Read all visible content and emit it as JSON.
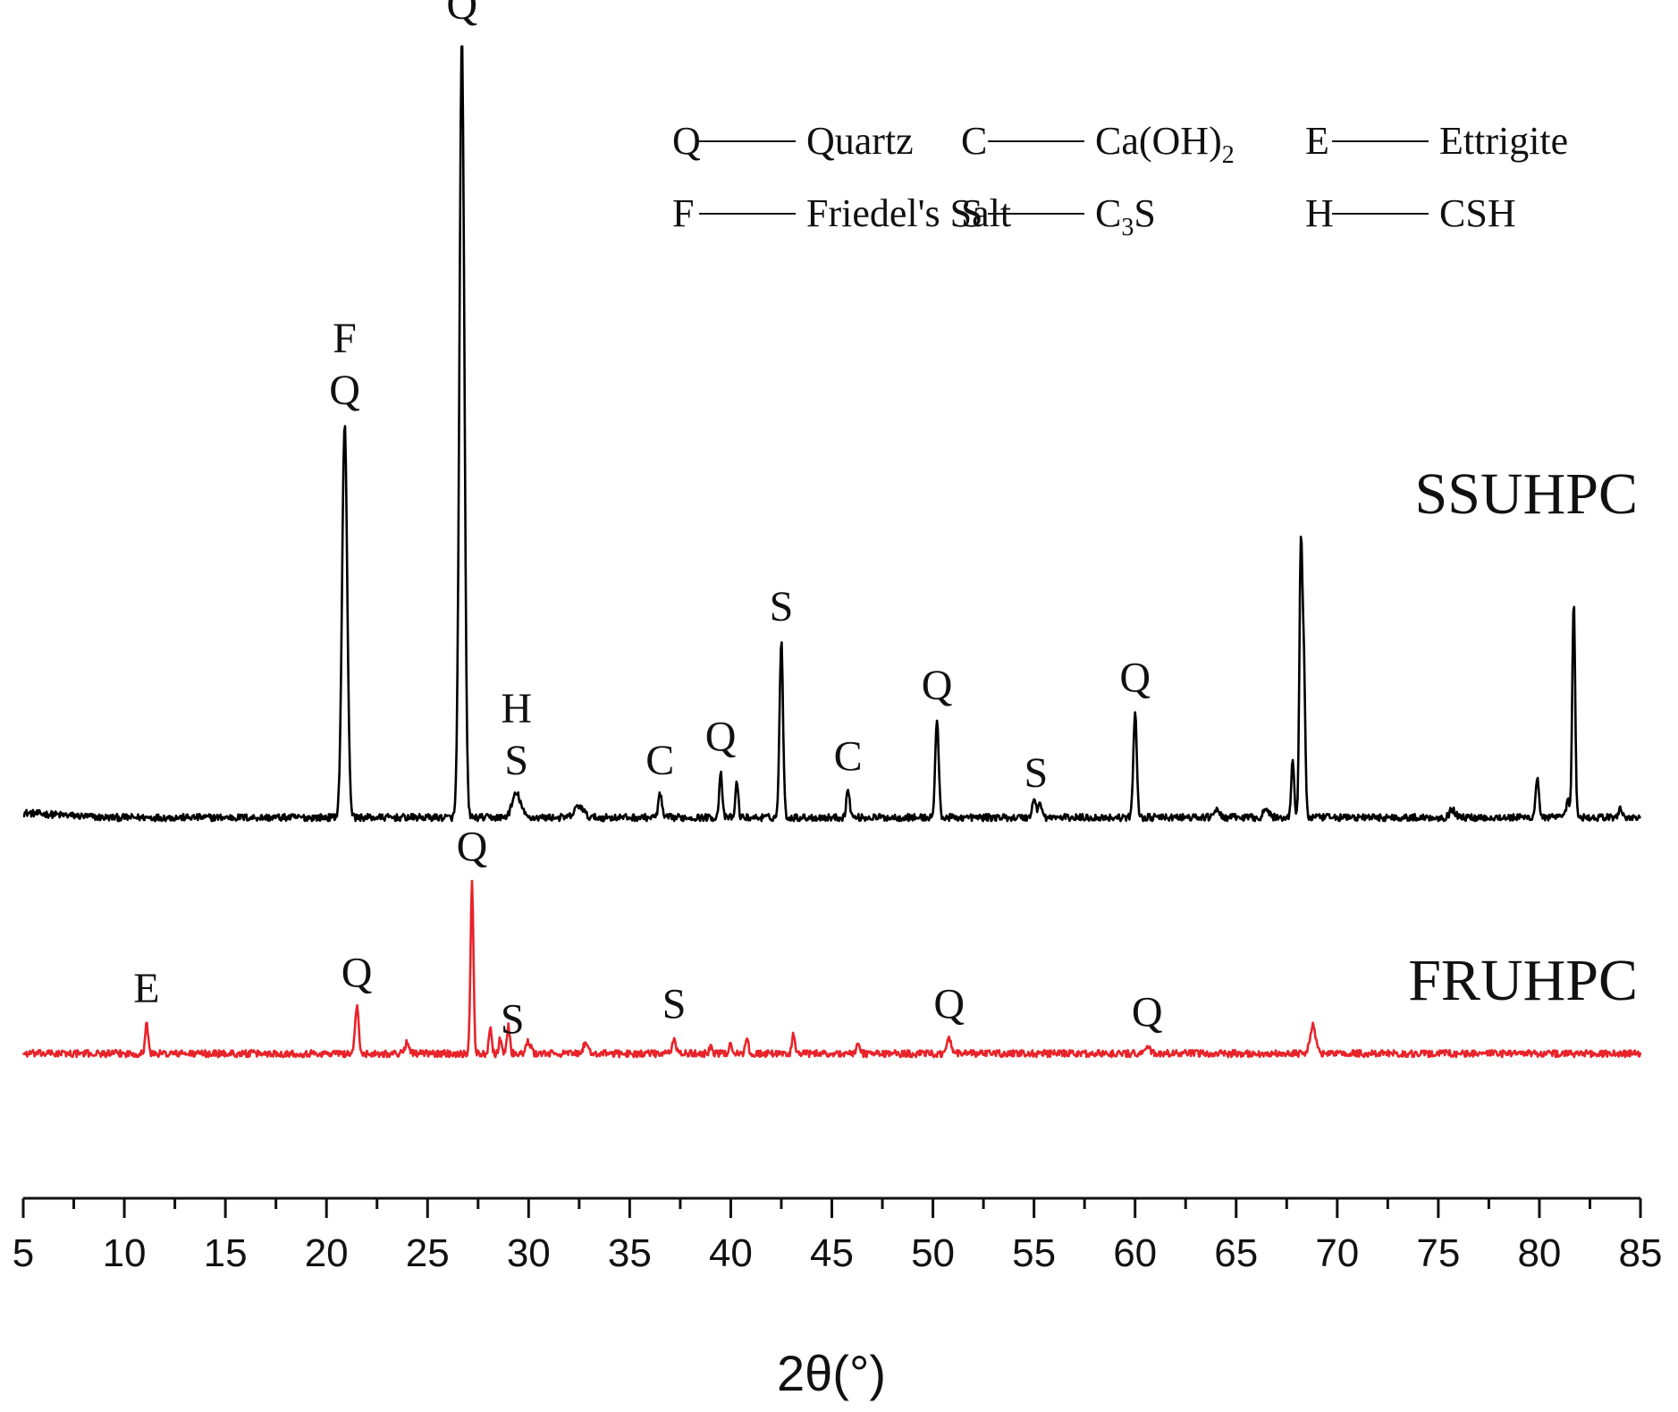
{
  "chart_data": {
    "type": "line",
    "title": "",
    "xlabel": "2θ(°)",
    "ylabel": "",
    "xlim": [
      5,
      85
    ],
    "x_ticks": [
      5,
      10,
      15,
      20,
      25,
      30,
      35,
      40,
      45,
      50,
      55,
      60,
      65,
      70,
      75,
      80,
      85
    ],
    "grid": false,
    "legend_position": "top-right",
    "legend": [
      [
        {
          "symbol": "Q",
          "name": "Quartz"
        },
        {
          "symbol": "C",
          "name": "Ca(OH)",
          "subscript": "2"
        },
        {
          "symbol": "E",
          "name": "Ettrigite"
        }
      ],
      [
        {
          "symbol": "F",
          "name": "Friedel's Salt"
        },
        {
          "symbol": "S",
          "name": "C",
          "subscript": "3",
          "suffix": "S"
        },
        {
          "symbol": "H",
          "name": "CSH"
        }
      ]
    ],
    "series": [
      {
        "name": "SSUHPC",
        "color": "#000000",
        "baseline": 0.07,
        "peaks": [
          {
            "x": 20.9,
            "h": 1.0,
            "w": 0.18
          },
          {
            "x": 26.7,
            "h": 1.98,
            "w": 0.17
          },
          {
            "x": 29.4,
            "h": 0.06,
            "w": 0.3
          },
          {
            "x": 32.5,
            "h": 0.03,
            "w": 0.3
          },
          {
            "x": 36.5,
            "h": 0.06,
            "w": 0.12
          },
          {
            "x": 39.5,
            "h": 0.12,
            "w": 0.1
          },
          {
            "x": 40.3,
            "h": 0.09,
            "w": 0.1
          },
          {
            "x": 42.5,
            "h": 0.45,
            "w": 0.12
          },
          {
            "x": 45.8,
            "h": 0.07,
            "w": 0.12
          },
          {
            "x": 50.2,
            "h": 0.25,
            "w": 0.12
          },
          {
            "x": 55.0,
            "h": 0.05,
            "w": 0.12
          },
          {
            "x": 55.3,
            "h": 0.04,
            "w": 0.12
          },
          {
            "x": 60.0,
            "h": 0.27,
            "w": 0.12
          },
          {
            "x": 64.0,
            "h": 0.02,
            "w": 0.2
          },
          {
            "x": 66.5,
            "h": 0.02,
            "w": 0.2
          },
          {
            "x": 67.8,
            "h": 0.15,
            "w": 0.1
          },
          {
            "x": 68.2,
            "h": 0.68,
            "w": 0.1
          },
          {
            "x": 68.35,
            "h": 0.38,
            "w": 0.1
          },
          {
            "x": 75.7,
            "h": 0.02,
            "w": 0.2
          },
          {
            "x": 79.9,
            "h": 0.1,
            "w": 0.12
          },
          {
            "x": 81.4,
            "h": 0.05,
            "w": 0.1
          },
          {
            "x": 81.7,
            "h": 0.55,
            "w": 0.1
          },
          {
            "x": 84.0,
            "h": 0.02,
            "w": 0.15
          }
        ],
        "annotations": [
          {
            "x": 20.9,
            "lines": [
              "F",
              "Q"
            ]
          },
          {
            "x": 26.7,
            "lines": [
              "Q"
            ]
          },
          {
            "x": 29.4,
            "lines": [
              "H",
              "S"
            ]
          },
          {
            "x": 36.5,
            "lines": [
              "C"
            ]
          },
          {
            "x": 39.5,
            "lines": [
              "Q"
            ]
          },
          {
            "x": 42.5,
            "lines": [
              "S"
            ]
          },
          {
            "x": 45.8,
            "lines": [
              "C"
            ]
          },
          {
            "x": 50.2,
            "lines": [
              "Q"
            ]
          },
          {
            "x": 55.1,
            "lines": [
              "S"
            ]
          },
          {
            "x": 60.0,
            "lines": [
              "Q"
            ]
          }
        ]
      },
      {
        "name": "FRUHPC",
        "color": "#e8232a",
        "baseline": -0.53,
        "peaks": [
          {
            "x": 11.1,
            "h": 0.08,
            "w": 0.1
          },
          {
            "x": 21.5,
            "h": 0.12,
            "w": 0.12
          },
          {
            "x": 24.0,
            "h": 0.03,
            "w": 0.15
          },
          {
            "x": 27.2,
            "h": 0.44,
            "w": 0.1
          },
          {
            "x": 28.1,
            "h": 0.07,
            "w": 0.1
          },
          {
            "x": 28.6,
            "h": 0.04,
            "w": 0.1
          },
          {
            "x": 29.0,
            "h": 0.07,
            "w": 0.1
          },
          {
            "x": 30.0,
            "h": 0.03,
            "w": 0.15
          },
          {
            "x": 32.8,
            "h": 0.02,
            "w": 0.2
          },
          {
            "x": 37.2,
            "h": 0.04,
            "w": 0.12
          },
          {
            "x": 39.0,
            "h": 0.02,
            "w": 0.1
          },
          {
            "x": 40.0,
            "h": 0.03,
            "w": 0.1
          },
          {
            "x": 40.8,
            "h": 0.04,
            "w": 0.1
          },
          {
            "x": 43.1,
            "h": 0.05,
            "w": 0.1
          },
          {
            "x": 46.3,
            "h": 0.02,
            "w": 0.12
          },
          {
            "x": 50.8,
            "h": 0.04,
            "w": 0.12
          },
          {
            "x": 60.6,
            "h": 0.02,
            "w": 0.15
          },
          {
            "x": 68.8,
            "h": 0.07,
            "w": 0.2
          }
        ],
        "annotations": [
          {
            "x": 11.1,
            "lines": [
              "E"
            ]
          },
          {
            "x": 21.5,
            "lines": [
              "Q"
            ]
          },
          {
            "x": 27.2,
            "lines": [
              "Q"
            ]
          },
          {
            "x": 29.2,
            "lines": [
              "S"
            ]
          },
          {
            "x": 37.2,
            "lines": [
              "S"
            ]
          },
          {
            "x": 50.8,
            "lines": [
              "Q"
            ]
          },
          {
            "x": 60.6,
            "lines": [
              "Q"
            ]
          }
        ]
      }
    ]
  }
}
